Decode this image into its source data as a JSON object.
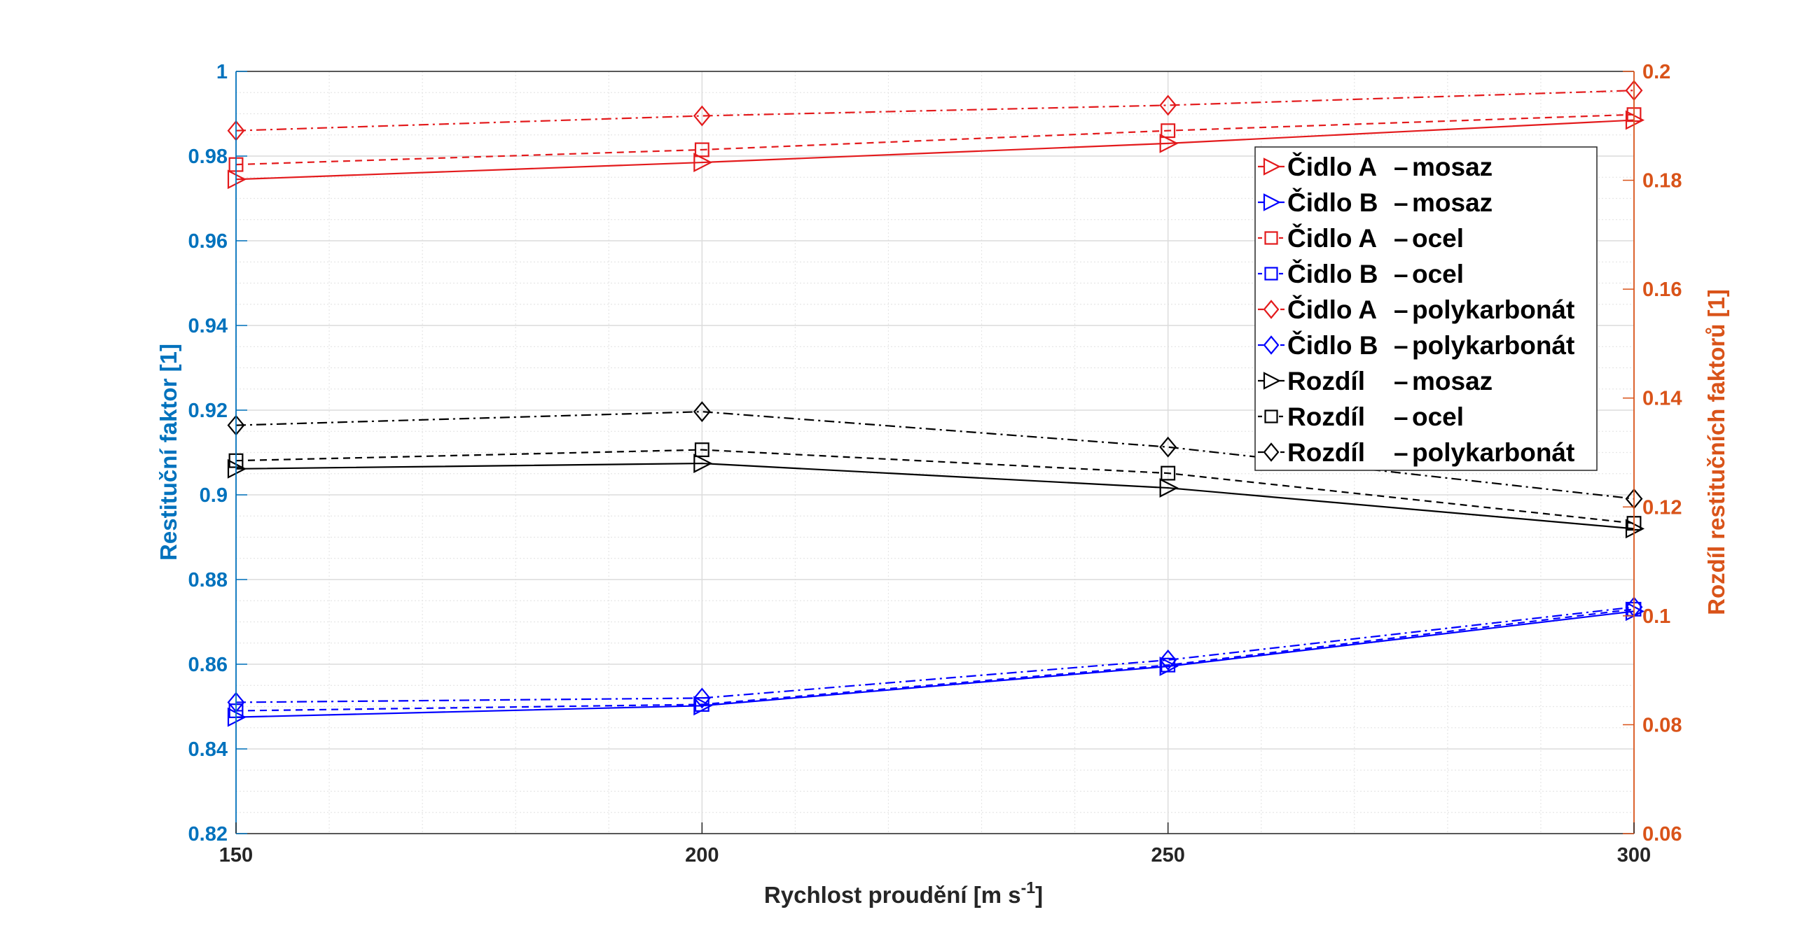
{
  "chart_data": {
    "type": "line",
    "xlabel": "Rychlost proudění [m s",
    "xlabel_sup": "-1",
    "xlabel_end": "]",
    "ylabel_left": "Restituční faktor [1]",
    "ylabel_right": "Rozdíl restitučních faktorů [1]",
    "x": [
      150,
      200,
      250,
      300
    ],
    "xlim": [
      150,
      300
    ],
    "ylim_left": [
      0.82,
      1.0
    ],
    "ylim_right": [
      0.06,
      0.2
    ],
    "xticks": [
      150,
      200,
      250,
      300
    ],
    "xtick_labels": [
      "150",
      "200",
      "250",
      "300"
    ],
    "yticks_left": [
      0.82,
      0.84,
      0.86,
      0.88,
      0.9,
      0.92,
      0.94,
      0.96,
      0.98,
      1.0
    ],
    "ytick_labels_left": [
      "0.82",
      "0.84",
      "0.86",
      "0.88",
      "0.9",
      "0.92",
      "0.94",
      "0.96",
      "0.98",
      "1"
    ],
    "yticks_right": [
      0.06,
      0.08,
      0.1,
      0.12,
      0.14,
      0.16,
      0.18,
      0.2
    ],
    "ytick_labels_right": [
      "0.06",
      "0.08",
      "0.1",
      "0.12",
      "0.14",
      "0.16",
      "0.18",
      "0.2"
    ],
    "grid": true,
    "legend_position": "top-right",
    "colors": {
      "left_axis": "#0072BD",
      "right_axis": "#D95319",
      "red": "#E31A1C",
      "blue": "#0000FF",
      "black": "#000000"
    },
    "series": [
      {
        "name": "Čidlo A – mosaz",
        "axis": "left",
        "color": "#E31A1C",
        "marker": "triangle-right",
        "line": "solid",
        "values": [
          0.9745,
          0.9785,
          0.983,
          0.9885
        ]
      },
      {
        "name": "Čidlo B – mosaz",
        "axis": "left",
        "color": "#0000FF",
        "marker": "triangle-right",
        "line": "solid",
        "values": [
          0.8475,
          0.8502,
          0.8595,
          0.8725
        ]
      },
      {
        "name": "Čidlo A – ocel",
        "axis": "left",
        "color": "#E31A1C",
        "marker": "square",
        "line": "dashed",
        "values": [
          0.978,
          0.9815,
          0.986,
          0.9898
        ]
      },
      {
        "name": "Čidlo B – ocel",
        "axis": "left",
        "color": "#0000FF",
        "marker": "square",
        "line": "dashed",
        "values": [
          0.849,
          0.8505,
          0.8598,
          0.873
        ]
      },
      {
        "name": "Čidlo A – polykarbonát",
        "axis": "left",
        "color": "#E31A1C",
        "marker": "diamond",
        "line": "dashdot",
        "values": [
          0.986,
          0.9895,
          0.992,
          0.9955
        ]
      },
      {
        "name": "Čidlo B – polykarbonát",
        "axis": "left",
        "color": "#0000FF",
        "marker": "diamond",
        "line": "dashdot",
        "values": [
          0.851,
          0.852,
          0.861,
          0.8735
        ]
      },
      {
        "name": "Rozdíl – mosaz",
        "axis": "right",
        "color": "#000000",
        "marker": "triangle-right",
        "line": "solid",
        "values": [
          0.127,
          0.128,
          0.1235,
          0.116
        ]
      },
      {
        "name": "Rozdíl – ocel",
        "axis": "right",
        "color": "#000000",
        "marker": "square",
        "line": "dashed",
        "values": [
          0.1285,
          0.1305,
          0.1262,
          0.117
        ]
      },
      {
        "name": "Rozdíl – polykarbonát",
        "axis": "right",
        "color": "#000000",
        "marker": "diamond",
        "line": "dashdot",
        "values": [
          0.135,
          0.1375,
          0.131,
          0.1215
        ]
      }
    ],
    "legend_entries": [
      {
        "a": "Čidlo A",
        "b": "mosaz"
      },
      {
        "a": "Čidlo B",
        "b": "mosaz"
      },
      {
        "a": "Čidlo A",
        "b": "ocel"
      },
      {
        "a": "Čidlo B",
        "b": "ocel"
      },
      {
        "a": "Čidlo A",
        "b": "polykarbonát"
      },
      {
        "a": "Čidlo B",
        "b": "polykarbonát"
      },
      {
        "a": "Rozdíl",
        "b": "mosaz"
      },
      {
        "a": "Rozdíl",
        "b": "ocel"
      },
      {
        "a": "Rozdíl",
        "b": "polykarbonát"
      }
    ],
    "legend_separator": "–"
  }
}
